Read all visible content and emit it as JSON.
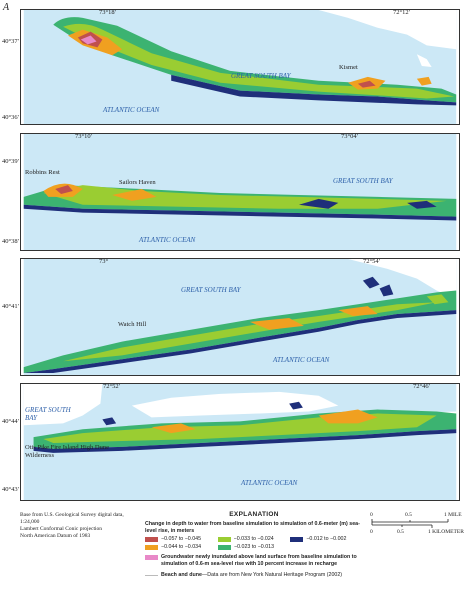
{
  "figure_letter": "A",
  "panels": [
    {
      "top_ticks": [
        "73°18′",
        "72°12′"
      ],
      "left_ticks": [
        "40°37′",
        "40°36′"
      ],
      "water_labels": [
        "GREAT SOUTH BAY",
        "ATLANTIC OCEAN"
      ],
      "places": [
        "Kismet"
      ]
    },
    {
      "top_ticks": [
        "73°10′",
        "73°04′"
      ],
      "left_ticks": [
        "40°39′",
        "40°38′"
      ],
      "water_labels": [
        "GREAT SOUTH BAY",
        "ATLANTIC OCEAN"
      ],
      "places": [
        "Robbins Rest",
        "Sailors Haven"
      ]
    },
    {
      "top_ticks": [
        "73°",
        "72°54′"
      ],
      "left_ticks": [
        "40°41′"
      ],
      "water_labels": [
        "GREAT SOUTH BAY",
        "ATLANTIC OCEAN"
      ],
      "places": [
        "Watch Hill"
      ]
    },
    {
      "top_ticks": [
        "72°52′",
        "72°46′"
      ],
      "left_ticks": [
        "40°44′",
        "40°43′"
      ],
      "water_labels": [
        "GREAT SOUTH BAY",
        "ATLANTIC OCEAN"
      ],
      "places": [
        "Otis Pike Fire Island High Dune Wilderness"
      ]
    }
  ],
  "base_note": [
    "Base from U.S. Geological Survey digital data, 1:24,000",
    "Lambert Conformal Conic projection",
    "North American Datum of 1983"
  ],
  "explanation": {
    "heading": "EXPLANATION",
    "title": "Change in depth to water from baseline simulation to simulation of 0.6-meter (m) sea-level rise, in meters",
    "classes": [
      {
        "label": "−0.057 to −0.045",
        "color": "#c0504d"
      },
      {
        "label": "−0.044 to −0.034",
        "color": "#f0a020"
      },
      {
        "label": "−0.033 to −0.024",
        "color": "#9acd32"
      },
      {
        "label": "−0.023 to −0.013",
        "color": "#3cb371"
      },
      {
        "label": "−0.012 to −0.002",
        "color": "#1f2f7a"
      }
    ],
    "pink_label": "Groundwater newly inundated above land surface from baseline simulation to simulation of 0.6-m sea-level rise with 10 percent increase in recharge",
    "pink_color": "#e889c8",
    "beach_label": "Beach and dune",
    "beach_source": "—Data are from New York Natural Heritage Program (2002)"
  },
  "scale": {
    "mile_ticks": [
      "0",
      "0.5",
      "1 MILE"
    ],
    "km_ticks": [
      "0",
      "0.5",
      "1 KILOMETER"
    ]
  },
  "colors": {
    "water": "#cce8f6",
    "land": "#ffffff",
    "border": "#333333"
  }
}
